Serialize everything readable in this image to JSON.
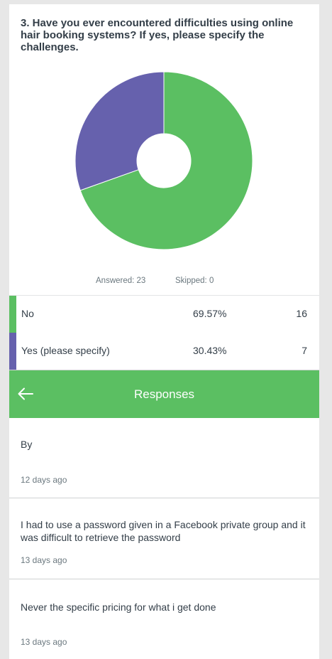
{
  "question": {
    "text": "3. Have you ever encountered difficulties using online hair booking systems? If yes, please specify the challenges."
  },
  "chart_data": {
    "type": "pie",
    "donut": true,
    "categories": [
      "No",
      "Yes (please specify)"
    ],
    "values": [
      69.57,
      30.43
    ],
    "colors": [
      "#5bbf62",
      "#6661ad"
    ]
  },
  "stats": {
    "answered": "Answered: 23",
    "skipped": "Skipped: 0"
  },
  "results": [
    {
      "label": "No",
      "percent": "69.57%",
      "count": "16",
      "color": "#5bbf62"
    },
    {
      "label": "Yes (please specify)",
      "percent": "30.43%",
      "count": "7",
      "color": "#6661ad"
    }
  ],
  "responses_panel": {
    "title": "Responses",
    "back_icon": "arrow-left-icon",
    "items": [
      {
        "text": "By",
        "time": "12 days ago"
      },
      {
        "text": "I had to use a password given in a Facebook private group and it was difficult to retrieve the password",
        "time": "13 days ago"
      },
      {
        "text": "Never the specific pricing for what i get done",
        "time": "13 days ago"
      }
    ]
  }
}
